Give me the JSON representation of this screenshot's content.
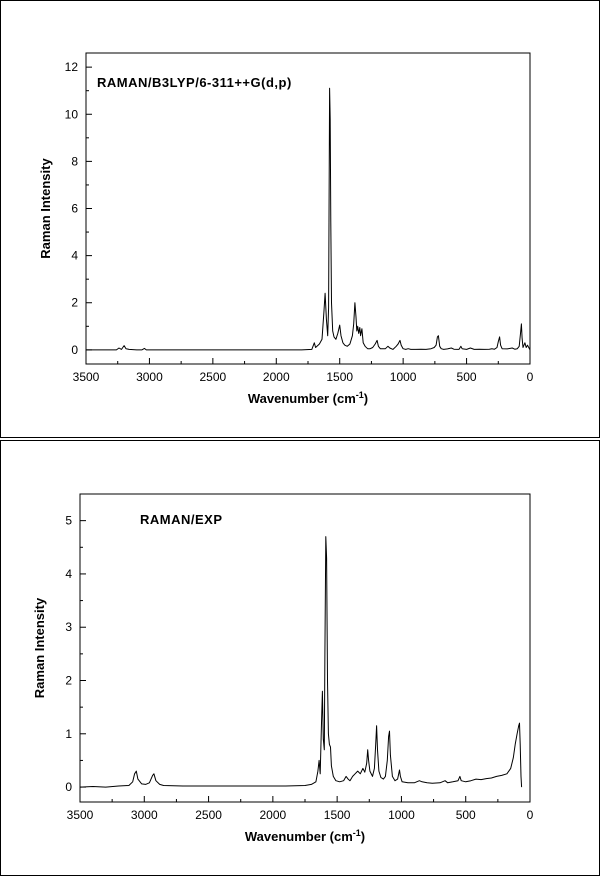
{
  "chart_data": [
    {
      "type": "line",
      "title": "RAMAN/B3LYP/6-311++G(d,p)",
      "xlabel": "Wavenumber (cm",
      "xlabel_sup": "-1",
      "xlabel_tail": ")",
      "ylabel": "Raman Intensity",
      "xlim": [
        3500,
        0
      ],
      "ylim": [
        -0.6,
        12.6
      ],
      "x_ticks": [
        3500,
        3000,
        2500,
        2000,
        1500,
        1000,
        500,
        0
      ],
      "y_ticks": [
        0,
        2,
        4,
        6,
        8,
        10,
        12
      ],
      "x_tick_labels": [
        "3500",
        "3000",
        "2500",
        "2000",
        "1500",
        "1000",
        "500",
        "0"
      ],
      "y_tick_labels": [
        "0",
        "2",
        "4",
        "6",
        "8",
        "10",
        "12"
      ],
      "grid": false,
      "series": [
        {
          "color": "#000000",
          "points": [
            [
              3500,
              0
            ],
            [
              3260,
              0
            ],
            [
              3240,
              0.08
            ],
            [
              3220,
              0.02
            ],
            [
              3200,
              0.18
            ],
            [
              3185,
              0.05
            ],
            [
              3160,
              0.02
            ],
            [
              3100,
              0
            ],
            [
              3060,
              0
            ],
            [
              3040,
              0.06
            ],
            [
              3025,
              0
            ],
            [
              2400,
              0
            ],
            [
              1800,
              0
            ],
            [
              1720,
              0.02
            ],
            [
              1700,
              0.3
            ],
            [
              1690,
              0.1
            ],
            [
              1660,
              0.25
            ],
            [
              1640,
              0.45
            ],
            [
              1625,
              1.6
            ],
            [
              1615,
              2.4
            ],
            [
              1605,
              1.3
            ],
            [
              1595,
              0.6
            ],
            [
              1588,
              1.8
            ],
            [
              1580,
              11.1
            ],
            [
              1575,
              9.8
            ],
            [
              1570,
              5.4
            ],
            [
              1565,
              2.0
            ],
            [
              1555,
              0.8
            ],
            [
              1545,
              0.55
            ],
            [
              1530,
              0.45
            ],
            [
              1515,
              0.7
            ],
            [
              1500,
              1.05
            ],
            [
              1490,
              0.6
            ],
            [
              1475,
              0.3
            ],
            [
              1460,
              0.2
            ],
            [
              1440,
              0.15
            ],
            [
              1420,
              0.25
            ],
            [
              1400,
              0.6
            ],
            [
              1390,
              1.1
            ],
            [
              1380,
              2.0
            ],
            [
              1372,
              1.4
            ],
            [
              1365,
              0.8
            ],
            [
              1358,
              1.0
            ],
            [
              1350,
              0.7
            ],
            [
              1342,
              0.95
            ],
            [
              1335,
              0.6
            ],
            [
              1325,
              0.9
            ],
            [
              1315,
              0.3
            ],
            [
              1300,
              0.15
            ],
            [
              1280,
              0.05
            ],
            [
              1260,
              0.05
            ],
            [
              1240,
              0.1
            ],
            [
              1220,
              0.25
            ],
            [
              1205,
              0.4
            ],
            [
              1195,
              0.15
            ],
            [
              1180,
              0.05
            ],
            [
              1140,
              0.05
            ],
            [
              1120,
              0.15
            ],
            [
              1105,
              0.08
            ],
            [
              1080,
              0.02
            ],
            [
              1055,
              0.15
            ],
            [
              1040,
              0.25
            ],
            [
              1025,
              0.4
            ],
            [
              1015,
              0.2
            ],
            [
              1000,
              0.05
            ],
            [
              980,
              0.02
            ],
            [
              960,
              0.05
            ],
            [
              940,
              0.02
            ],
            [
              900,
              0.02
            ],
            [
              860,
              0.03
            ],
            [
              820,
              0.02
            ],
            [
              780,
              0.05
            ],
            [
              755,
              0.1
            ],
            [
              740,
              0.2
            ],
            [
              730,
              0.55
            ],
            [
              722,
              0.6
            ],
            [
              712,
              0.15
            ],
            [
              700,
              0.05
            ],
            [
              680,
              0.02
            ],
            [
              650,
              0.04
            ],
            [
              620,
              0.08
            ],
            [
              600,
              0.03
            ],
            [
              560,
              0.02
            ],
            [
              545,
              0.15
            ],
            [
              535,
              0.05
            ],
            [
              500,
              0.02
            ],
            [
              470,
              0.08
            ],
            [
              440,
              0.02
            ],
            [
              400,
              0.03
            ],
            [
              360,
              0.02
            ],
            [
              320,
              0.03
            ],
            [
              300,
              0.05
            ],
            [
              280,
              0.03
            ],
            [
              260,
              0.1
            ],
            [
              250,
              0.35
            ],
            [
              240,
              0.55
            ],
            [
              232,
              0.2
            ],
            [
              220,
              0.05
            ],
            [
              180,
              0.04
            ],
            [
              140,
              0.08
            ],
            [
              120,
              0.03
            ],
            [
              100,
              0.05
            ],
            [
              85,
              0.15
            ],
            [
              75,
              0.7
            ],
            [
              68,
              1.1
            ],
            [
              62,
              0.5
            ],
            [
              55,
              0.1
            ],
            [
              40,
              0.3
            ],
            [
              30,
              0.1
            ],
            [
              20,
              0.2
            ],
            [
              0,
              0
            ]
          ]
        }
      ]
    },
    {
      "type": "line",
      "title": "RAMAN/EXP",
      "xlabel": "Wavenumber (cm",
      "xlabel_sup": "-1",
      "xlabel_tail": ")",
      "ylabel": "Raman Intensity",
      "xlim": [
        3500,
        0
      ],
      "ylim": [
        -0.28,
        5.5
      ],
      "x_ticks": [
        3500,
        3000,
        2500,
        2000,
        1500,
        1000,
        500,
        0
      ],
      "y_ticks": [
        0,
        1,
        2,
        3,
        4,
        5
      ],
      "x_tick_labels": [
        "3500",
        "3000",
        "2500",
        "2000",
        "1500",
        "1000",
        "500",
        "0"
      ],
      "y_tick_labels": [
        "0",
        "1",
        "2",
        "3",
        "4",
        "5"
      ],
      "grid": false,
      "series": [
        {
          "color": "#000000",
          "points": [
            [
              3500,
              0.0
            ],
            [
              3400,
              0.01
            ],
            [
              3300,
              0.0
            ],
            [
              3200,
              0.02
            ],
            [
              3120,
              0.03
            ],
            [
              3090,
              0.1
            ],
            [
              3075,
              0.25
            ],
            [
              3062,
              0.3
            ],
            [
              3050,
              0.15
            ],
            [
              3020,
              0.06
            ],
            [
              2990,
              0.05
            ],
            [
              2960,
              0.08
            ],
            [
              2935,
              0.22
            ],
            [
              2925,
              0.25
            ],
            [
              2910,
              0.12
            ],
            [
              2880,
              0.05
            ],
            [
              2850,
              0.03
            ],
            [
              2700,
              0.02
            ],
            [
              2500,
              0.02
            ],
            [
              2300,
              0.02
            ],
            [
              2100,
              0.02
            ],
            [
              1900,
              0.02
            ],
            [
              1750,
              0.03
            ],
            [
              1700,
              0.05
            ],
            [
              1665,
              0.1
            ],
            [
              1650,
              0.3
            ],
            [
              1640,
              0.5
            ],
            [
              1632,
              0.25
            ],
            [
              1622,
              1.2
            ],
            [
              1615,
              1.8
            ],
            [
              1608,
              0.9
            ],
            [
              1600,
              0.7
            ],
            [
              1595,
              2.5
            ],
            [
              1588,
              4.7
            ],
            [
              1582,
              4.3
            ],
            [
              1575,
              2.0
            ],
            [
              1568,
              1.0
            ],
            [
              1560,
              0.8
            ],
            [
              1552,
              0.75
            ],
            [
              1545,
              0.4
            ],
            [
              1530,
              0.2
            ],
            [
              1510,
              0.12
            ],
            [
              1480,
              0.1
            ],
            [
              1450,
              0.12
            ],
            [
              1430,
              0.2
            ],
            [
              1415,
              0.15
            ],
            [
              1400,
              0.12
            ],
            [
              1380,
              0.2
            ],
            [
              1360,
              0.25
            ],
            [
              1340,
              0.3
            ],
            [
              1320,
              0.25
            ],
            [
              1300,
              0.35
            ],
            [
              1285,
              0.28
            ],
            [
              1270,
              0.45
            ],
            [
              1262,
              0.7
            ],
            [
              1255,
              0.5
            ],
            [
              1245,
              0.3
            ],
            [
              1225,
              0.2
            ],
            [
              1210,
              0.35
            ],
            [
              1200,
              0.8
            ],
            [
              1193,
              1.15
            ],
            [
              1186,
              0.7
            ],
            [
              1175,
              0.3
            ],
            [
              1160,
              0.18
            ],
            [
              1140,
              0.15
            ],
            [
              1125,
              0.2
            ],
            [
              1110,
              0.5
            ],
            [
              1100,
              0.95
            ],
            [
              1093,
              1.05
            ],
            [
              1086,
              0.6
            ],
            [
              1070,
              0.2
            ],
            [
              1050,
              0.12
            ],
            [
              1030,
              0.15
            ],
            [
              1015,
              0.32
            ],
            [
              1008,
              0.2
            ],
            [
              995,
              0.1
            ],
            [
              950,
              0.08
            ],
            [
              900,
              0.08
            ],
            [
              860,
              0.12
            ],
            [
              840,
              0.1
            ],
            [
              800,
              0.08
            ],
            [
              760,
              0.07
            ],
            [
              700,
              0.08
            ],
            [
              660,
              0.12
            ],
            [
              640,
              0.08
            ],
            [
              600,
              0.1
            ],
            [
              560,
              0.12
            ],
            [
              545,
              0.2
            ],
            [
              535,
              0.12
            ],
            [
              500,
              0.1
            ],
            [
              460,
              0.12
            ],
            [
              420,
              0.15
            ],
            [
              380,
              0.14
            ],
            [
              340,
              0.16
            ],
            [
              300,
              0.17
            ],
            [
              260,
              0.2
            ],
            [
              220,
              0.22
            ],
            [
              180,
              0.25
            ],
            [
              150,
              0.35
            ],
            [
              130,
              0.55
            ],
            [
              115,
              0.8
            ],
            [
              100,
              1.0
            ],
            [
              88,
              1.15
            ],
            [
              82,
              1.2
            ],
            [
              76,
              0.8
            ],
            [
              70,
              0.2
            ],
            [
              65,
              0.0
            ]
          ]
        }
      ]
    }
  ]
}
